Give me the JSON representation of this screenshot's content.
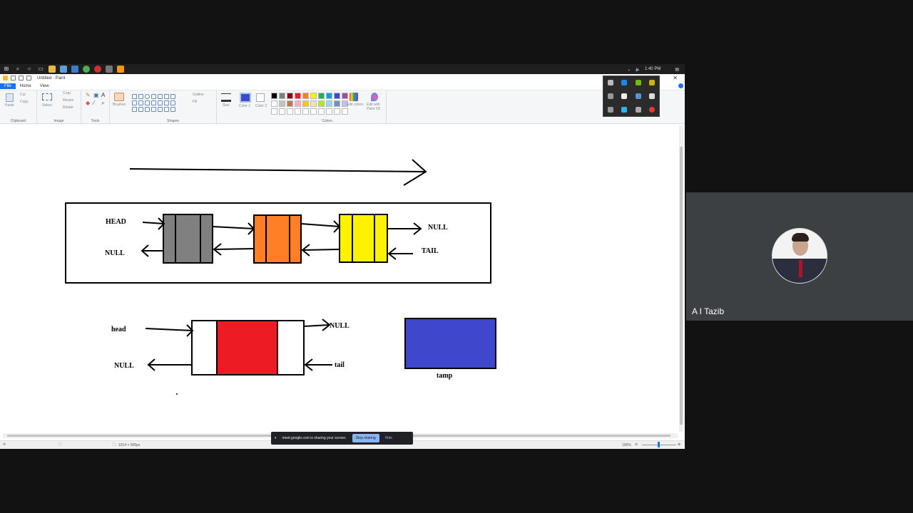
{
  "paint": {
    "title": "Untitled - Paint",
    "menus": [
      "File",
      "Home",
      "View"
    ],
    "ribbon": {
      "clipboard": {
        "label": "Clipboard",
        "paste": "Paste",
        "cut": "Cut",
        "copy": "Copy"
      },
      "image": {
        "label": "Image",
        "select": "Select",
        "crop": "Crop",
        "resize": "Resize",
        "rotate": "Rotate"
      },
      "tools": {
        "label": "Tools"
      },
      "brushes": {
        "label": "Brushes"
      },
      "shapes": {
        "label": "Shapes",
        "outline": "Outline",
        "fill": "Fill"
      },
      "size": {
        "label": "Size"
      },
      "color1": {
        "label": "Color 1",
        "value": "#3f48cc"
      },
      "color2": {
        "label": "Color 2",
        "value": "#ffffff"
      },
      "colors": {
        "label": "Colors",
        "edit": "Edit colors",
        "paint3d": "Edit with Paint 3D"
      },
      "palette": [
        "#000000",
        "#7f7f7f",
        "#880015",
        "#ed1c24",
        "#ff7f27",
        "#fff200",
        "#22b14c",
        "#00a2e8",
        "#3f48cc",
        "#a349a4",
        "#ffffff",
        "#c3c3c3",
        "#b97a57",
        "#ffaec9",
        "#ffc90e",
        "#efe4b0",
        "#b5e61d",
        "#99d9ea",
        "#7092be",
        "#c8bfe7"
      ]
    },
    "canvas": {
      "top_list": {
        "head_label": "HEAD",
        "null_left": "NULL",
        "null_right": "NULL",
        "tail_label": "TAIL",
        "node_colors": [
          "#808080",
          "#ff7f27",
          "#fff200"
        ]
      },
      "bottom_list": {
        "head_label": "head",
        "null_left": "NULL",
        "null_right": "NULL",
        "tail_label": "tail",
        "node_color": "#ed1c24"
      },
      "temp_box": {
        "label": "tamp",
        "color": "#3f48cc"
      }
    },
    "status": {
      "dimensions": "1914 × 905px",
      "zoom": "100%"
    },
    "taskbar_time": "1:40 PM"
  },
  "meet": {
    "sharing_text": "meet.google.com is sharing your screen.",
    "stop_button": "Stop sharing",
    "hide_button": "Hide",
    "participant_name": "A I Tazib"
  }
}
